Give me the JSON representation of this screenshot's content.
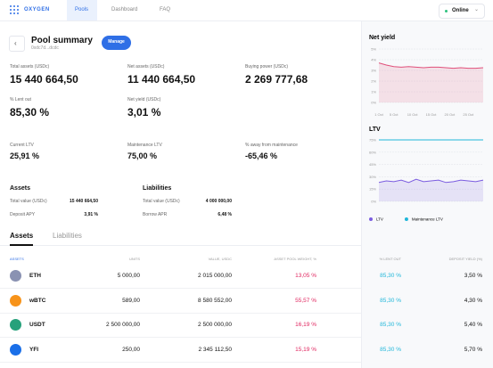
{
  "nav": {
    "logo": "OXYGEN",
    "tabs": [
      "Pools",
      "Dashboard",
      "FAQ"
    ],
    "status": "Online"
  },
  "summary": {
    "title": "Pool summary",
    "address": "0xdc7d...dcdc",
    "button": "Manage"
  },
  "stats": [
    {
      "label": "Total assets (USDc)",
      "value": "15 440 664,50"
    },
    {
      "label": "Net assets (USDc)",
      "value": "11 440 664,50"
    },
    {
      "label": "Buying power (USDc)",
      "value": "2 269 777,68"
    },
    {
      "label": "% Lent out",
      "value": "85,30 %"
    },
    {
      "label": "Net yield (USDc)",
      "value": "3,01 %"
    },
    {
      "label": "Current LTV",
      "value": "25,91 %"
    },
    {
      "label": "Maintenance LTV",
      "value": "75,00 %"
    },
    {
      "label": "% away from maintenance",
      "value": "-65,46 %"
    }
  ],
  "assets": {
    "title": "Assets",
    "rows": [
      [
        "Total value (USDc)",
        "15 440 664,50"
      ],
      [
        "Deposit APY",
        "3,91 %"
      ]
    ]
  },
  "liabilities": {
    "title": "Liabilities",
    "rows": [
      [
        "Total value (USDc)",
        "4 000 000,00"
      ],
      [
        "Borrow APR",
        "6,48 %"
      ]
    ]
  },
  "tabs": [
    "Assets",
    "Liabilities"
  ],
  "table": {
    "headers": [
      "ASSETS",
      "UNITS",
      "VALUE, USDC",
      "ASSET POOL WEIGHT, %",
      "% LENT OUT",
      "DEPOSIT YIELD (%)"
    ],
    "rows": [
      {
        "cells": [
          "ETH",
          "5 000,00",
          "2 015 000,00",
          "13,05 %",
          "85,30 %",
          "3,50 %"
        ],
        "icon_color": "#8a92b2"
      },
      {
        "cells": [
          "wBTC",
          "589,00",
          "8 580 552,00",
          "55,57 %",
          "85,30 %",
          "4,30 %"
        ],
        "icon_color": "#f7931a"
      },
      {
        "cells": [
          "USDT",
          "2 500 000,00",
          "2 500 000,00",
          "16,19 %",
          "85,30 %",
          "5,40 %"
        ],
        "icon_color": "#26a17b"
      },
      {
        "cells": [
          "YFI",
          "250,00",
          "2 345 112,50",
          "15,19 %",
          "85,30 %",
          "5,70 %"
        ],
        "icon_color": "#1a6fe8"
      }
    ]
  },
  "chart_data": [
    {
      "type": "line",
      "title": "Net yield",
      "x": [
        1,
        3,
        5,
        7,
        9,
        11,
        13,
        15,
        17,
        19,
        21,
        23,
        25,
        27,
        29
      ],
      "xlim": [
        1,
        29
      ],
      "xticks": [
        {
          "value": 1,
          "label": "1 Oct"
        },
        {
          "value": 5,
          "label": "5 Oct"
        },
        {
          "value": 10,
          "label": "10 Oct"
        },
        {
          "value": 15,
          "label": "15 Oct"
        },
        {
          "value": 20,
          "label": "20 Oct"
        },
        {
          "value": 25,
          "label": "25 Oct"
        }
      ],
      "ylim": [
        0,
        5
      ],
      "yticks": [
        {
          "value": 0,
          "label": "0%"
        },
        {
          "value": 1,
          "label": "1%"
        },
        {
          "value": 2,
          "label": "2%"
        },
        {
          "value": 3,
          "label": "3%"
        },
        {
          "value": 4,
          "label": "4%"
        },
        {
          "value": 5,
          "label": "5%"
        }
      ],
      "grid": true,
      "series": [
        {
          "color": "#e0507a",
          "area": true,
          "values": [
            3.7,
            3.5,
            3.35,
            3.3,
            3.35,
            3.3,
            3.25,
            3.3,
            3.3,
            3.25,
            3.2,
            3.25,
            3.2,
            3.2,
            3.25
          ]
        }
      ]
    },
    {
      "type": "line",
      "title": "LTV",
      "x": [
        1,
        3,
        5,
        7,
        9,
        11,
        13,
        15,
        17,
        19,
        21,
        23,
        25,
        27,
        29
      ],
      "xlim": [
        1,
        29
      ],
      "ylim": [
        0,
        75
      ],
      "yticks": [
        {
          "value": 0,
          "label": "0%"
        },
        {
          "value": 15,
          "label": "15%"
        },
        {
          "value": 30,
          "label": "30%"
        },
        {
          "value": 45,
          "label": "45%"
        },
        {
          "value": 60,
          "label": "60%"
        },
        {
          "value": 75,
          "label": "75%"
        }
      ],
      "grid": true,
      "series": [
        {
          "name": "LTV",
          "color": "#7b5ce0",
          "area": true,
          "values": [
            23,
            25,
            24,
            26,
            23,
            27,
            24,
            25,
            26,
            23,
            24,
            26,
            25,
            24,
            26
          ]
        },
        {
          "name": "Maintenance LTV",
          "color": "#1fb6d9",
          "area": false,
          "values": [
            75,
            75,
            75,
            75,
            75,
            75,
            75,
            75,
            75,
            75,
            75,
            75,
            75,
            75,
            75
          ]
        }
      ]
    }
  ]
}
